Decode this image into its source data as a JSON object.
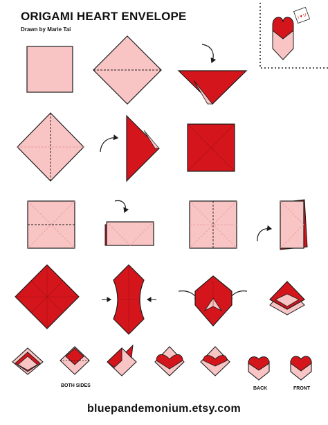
{
  "title": "ORIGAMI HEART ENVELOPE",
  "byline": "Drawn by Marie Tai",
  "captions": {
    "both_sides": "BOTH SIDES",
    "back": "BACK",
    "front": "FRONT"
  },
  "note_text": "I ♥ U",
  "footer": "bluepandemonium.etsy.com",
  "colors": {
    "paper_back": "#f9c4c4",
    "paper_front": "#d4161c",
    "outline": "#1a1a1a",
    "dashed_line": "#e69a9a"
  },
  "icons": [
    "curved-arrow-icon",
    "push-arrow-icon"
  ]
}
